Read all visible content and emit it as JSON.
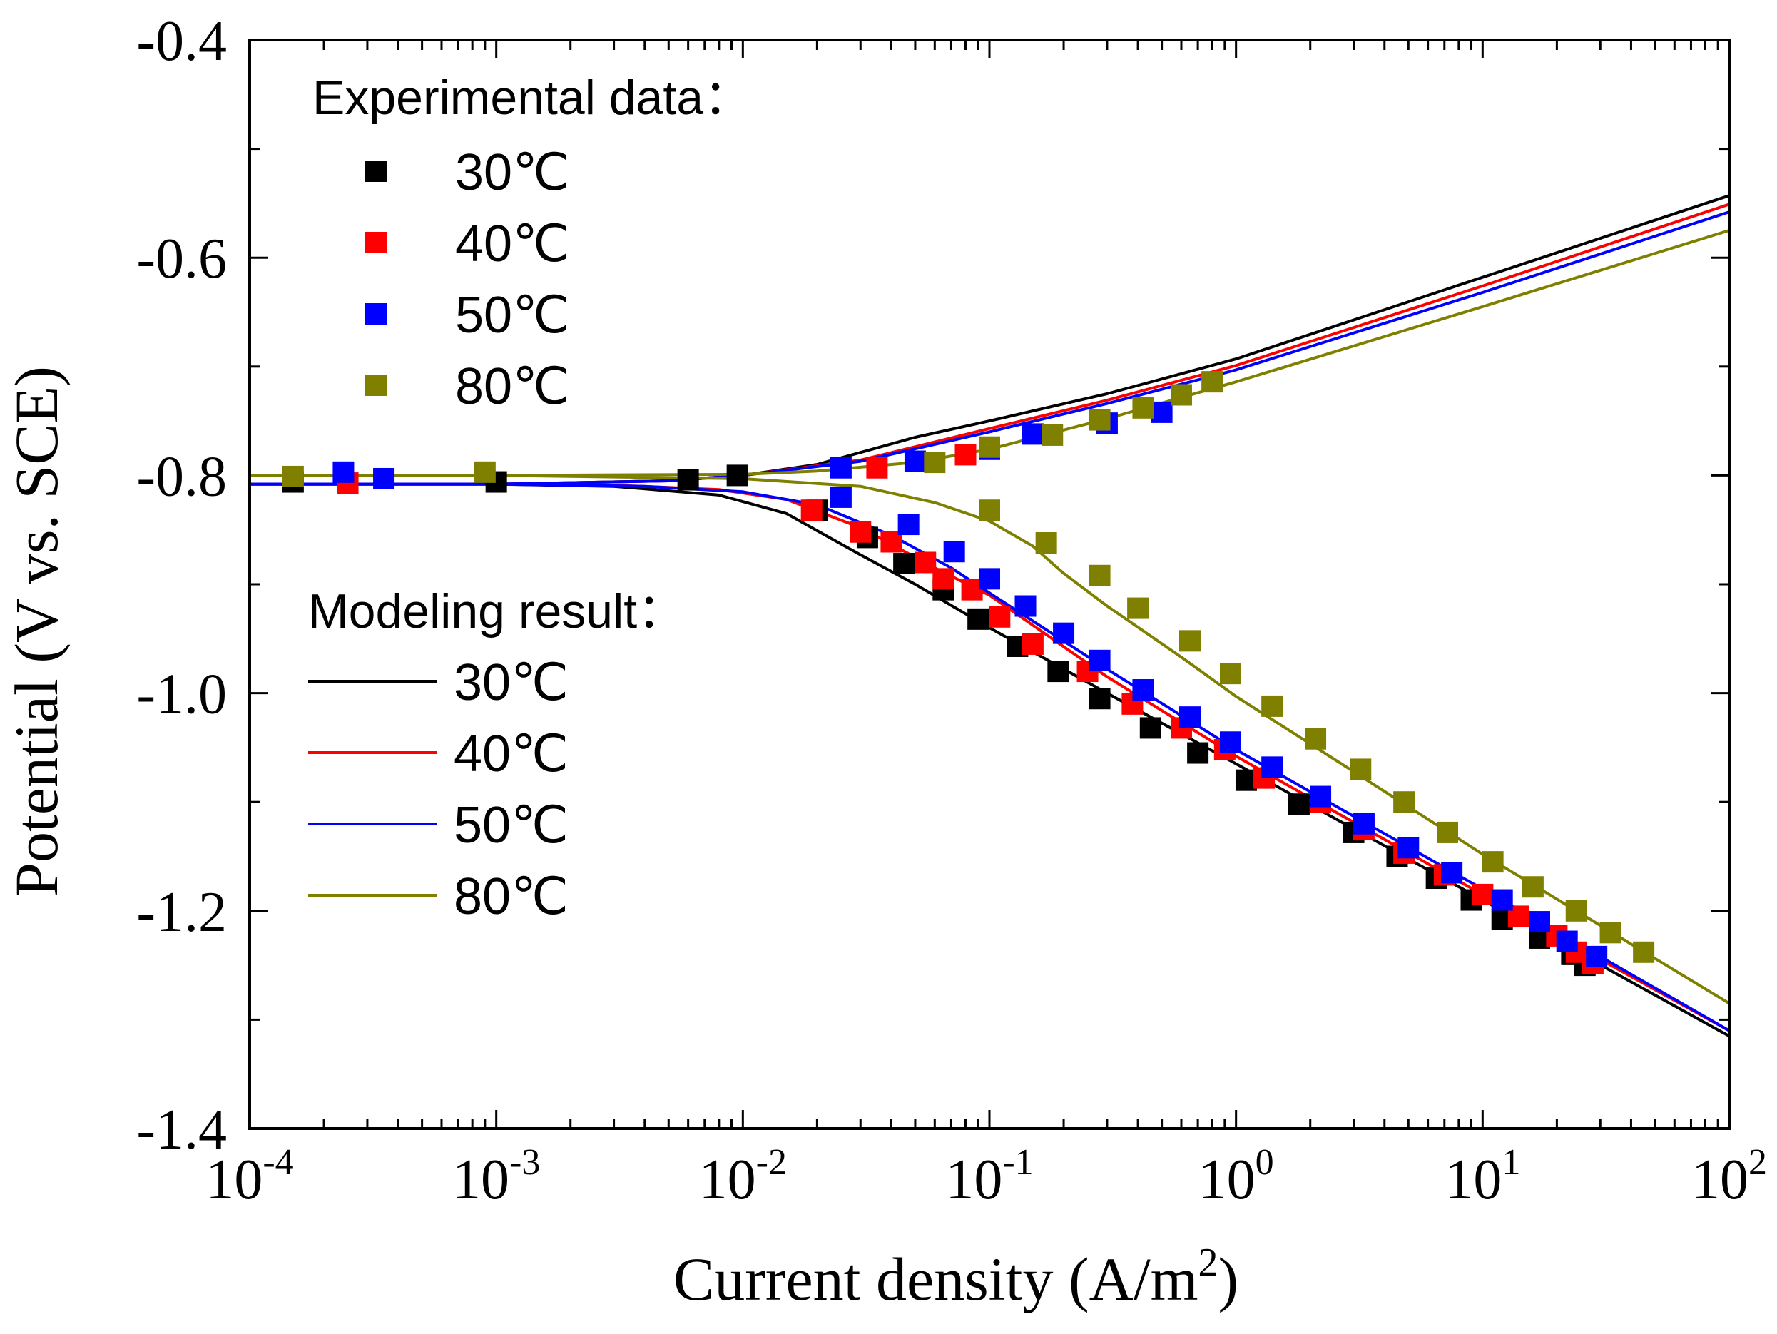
{
  "chart_data": {
    "type": "line",
    "xscale": "log",
    "xlabel": {
      "main": "Current density (A/m",
      "sup": "2",
      "close": ")"
    },
    "ylabel": "Potential (V vs. SCE)",
    "xlim": [
      0.0001,
      100
    ],
    "ylim": [
      -1.4,
      -0.4
    ],
    "x_ticks": [
      {
        "base": "10",
        "exp": "-4",
        "value": 0.0001
      },
      {
        "base": "10",
        "exp": "-3",
        "value": 0.001
      },
      {
        "base": "10",
        "exp": "-2",
        "value": 0.01
      },
      {
        "base": "10",
        "exp": "-1",
        "value": 0.1
      },
      {
        "base": "10",
        "exp": "0",
        "value": 1
      },
      {
        "base": "10",
        "exp": "1",
        "value": 10
      },
      {
        "base": "10",
        "exp": "2",
        "value": 100
      }
    ],
    "y_ticks": [
      {
        "label": "-0.4",
        "value": -0.4
      },
      {
        "label": "-0.6",
        "value": -0.6
      },
      {
        "label": "-0.8",
        "value": -0.8
      },
      {
        "label": "-1.0",
        "value": -1.0
      },
      {
        "label": "-1.2",
        "value": -1.2
      },
      {
        "label": "-1.4",
        "value": -1.4
      }
    ],
    "legend_experimental_title": "Experimental data：",
    "legend_model_title": "Modeling result：",
    "legend_placement": "top-left",
    "series": [
      {
        "name": "30℃",
        "color": "#000000",
        "ecorr": -0.808,
        "exp_anodic": [
          [
            0.00015,
            -0.806
          ],
          [
            0.001,
            -0.806
          ],
          [
            0.006,
            -0.804
          ],
          [
            0.0095,
            -0.8
          ]
        ],
        "exp_cathodic": [
          [
            0.02,
            -0.832
          ],
          [
            0.032,
            -0.857
          ],
          [
            0.045,
            -0.881
          ],
          [
            0.065,
            -0.905
          ],
          [
            0.09,
            -0.932
          ],
          [
            0.13,
            -0.957
          ],
          [
            0.19,
            -0.98
          ],
          [
            0.28,
            -1.005
          ],
          [
            0.45,
            -1.032
          ],
          [
            0.7,
            -1.055
          ],
          [
            1.1,
            -1.08
          ],
          [
            1.8,
            -1.102
          ],
          [
            3,
            -1.128
          ],
          [
            4.5,
            -1.15
          ],
          [
            6.5,
            -1.17
          ],
          [
            9,
            -1.19
          ],
          [
            12,
            -1.208
          ],
          [
            17,
            -1.225
          ],
          [
            23,
            -1.24
          ],
          [
            26,
            -1.25
          ]
        ],
        "model_anodic": [
          [
            0.0001,
            -0.808
          ],
          [
            0.001,
            -0.808
          ],
          [
            0.005,
            -0.805
          ],
          [
            0.01,
            -0.8
          ],
          [
            0.02,
            -0.79
          ],
          [
            0.05,
            -0.765
          ],
          [
            0.1,
            -0.75
          ],
          [
            0.3,
            -0.725
          ],
          [
            1,
            -0.693
          ],
          [
            10,
            -0.618
          ],
          [
            100,
            -0.543
          ]
        ],
        "model_cathodic": [
          [
            0.0001,
            -0.808
          ],
          [
            0.001,
            -0.808
          ],
          [
            0.003,
            -0.81
          ],
          [
            0.008,
            -0.818
          ],
          [
            0.015,
            -0.835
          ],
          [
            0.03,
            -0.873
          ],
          [
            0.05,
            -0.9
          ],
          [
            0.1,
            -0.94
          ],
          [
            0.3,
            -1.0
          ],
          [
            1,
            -1.065
          ],
          [
            10,
            -1.19
          ],
          [
            100,
            -1.315
          ]
        ]
      },
      {
        "name": "40℃",
        "color": "#ff0000",
        "ecorr": -0.808,
        "exp_anodic": [
          [
            0.00025,
            -0.807
          ],
          [
            0.035,
            -0.793
          ],
          [
            0.08,
            -0.781
          ]
        ],
        "exp_cathodic": [
          [
            0.019,
            -0.832
          ],
          [
            0.03,
            -0.852
          ],
          [
            0.04,
            -0.861
          ],
          [
            0.055,
            -0.88
          ],
          [
            0.065,
            -0.895
          ],
          [
            0.085,
            -0.905
          ],
          [
            0.11,
            -0.93
          ],
          [
            0.15,
            -0.955
          ],
          [
            0.25,
            -0.98
          ],
          [
            0.38,
            -1.01
          ],
          [
            0.6,
            -1.032
          ],
          [
            0.9,
            -1.052
          ],
          [
            1.3,
            -1.078
          ],
          [
            2.2,
            -1.1
          ],
          [
            3.3,
            -1.125
          ],
          [
            4.8,
            -1.147
          ],
          [
            7,
            -1.167
          ],
          [
            10,
            -1.185
          ],
          [
            14,
            -1.205
          ],
          [
            20,
            -1.223
          ],
          [
            24,
            -1.238
          ],
          [
            28,
            -1.248
          ]
        ],
        "model_anodic": [
          [
            0.0001,
            -0.808
          ],
          [
            0.001,
            -0.808
          ],
          [
            0.005,
            -0.805
          ],
          [
            0.01,
            -0.8
          ],
          [
            0.03,
            -0.786
          ],
          [
            0.1,
            -0.757
          ],
          [
            0.3,
            -0.731
          ],
          [
            1,
            -0.699
          ],
          [
            10,
            -0.626
          ],
          [
            100,
            -0.551
          ]
        ],
        "model_cathodic": [
          [
            0.0001,
            -0.808
          ],
          [
            0.001,
            -0.808
          ],
          [
            0.003,
            -0.809
          ],
          [
            0.008,
            -0.813
          ],
          [
            0.015,
            -0.822
          ],
          [
            0.03,
            -0.848
          ],
          [
            0.06,
            -0.885
          ],
          [
            0.1,
            -0.91
          ],
          [
            0.3,
            -0.985
          ],
          [
            1,
            -1.058
          ],
          [
            10,
            -1.185
          ],
          [
            100,
            -1.31
          ]
        ]
      },
      {
        "name": "50℃",
        "color": "#0000ff",
        "ecorr": -0.808,
        "exp_anodic": [
          [
            0.00024,
            -0.797
          ],
          [
            0.00035,
            -0.803
          ],
          [
            0.025,
            -0.793
          ],
          [
            0.05,
            -0.787
          ],
          [
            0.1,
            -0.776
          ],
          [
            0.15,
            -0.762
          ],
          [
            0.3,
            -0.752
          ],
          [
            0.5,
            -0.742
          ]
        ],
        "exp_cathodic": [
          [
            0.025,
            -0.82
          ],
          [
            0.047,
            -0.845
          ],
          [
            0.072,
            -0.87
          ],
          [
            0.1,
            -0.895
          ],
          [
            0.14,
            -0.92
          ],
          [
            0.2,
            -0.945
          ],
          [
            0.28,
            -0.97
          ],
          [
            0.42,
            -0.997
          ],
          [
            0.65,
            -1.022
          ],
          [
            0.95,
            -1.045
          ],
          [
            1.4,
            -1.068
          ],
          [
            2.2,
            -1.095
          ],
          [
            3.3,
            -1.12
          ],
          [
            5,
            -1.142
          ],
          [
            7.5,
            -1.165
          ],
          [
            12,
            -1.19
          ],
          [
            17,
            -1.21
          ],
          [
            22,
            -1.228
          ],
          [
            29,
            -1.242
          ]
        ],
        "model_anodic": [
          [
            0.0001,
            -0.808
          ],
          [
            0.001,
            -0.808
          ],
          [
            0.005,
            -0.805
          ],
          [
            0.01,
            -0.8
          ],
          [
            0.03,
            -0.787
          ],
          [
            0.1,
            -0.76
          ],
          [
            0.3,
            -0.734
          ],
          [
            1,
            -0.703
          ],
          [
            10,
            -0.632
          ],
          [
            100,
            -0.558
          ]
        ],
        "model_cathodic": [
          [
            0.0001,
            -0.808
          ],
          [
            0.001,
            -0.808
          ],
          [
            0.004,
            -0.81
          ],
          [
            0.01,
            -0.815
          ],
          [
            0.02,
            -0.827
          ],
          [
            0.04,
            -0.855
          ],
          [
            0.07,
            -0.885
          ],
          [
            0.1,
            -0.908
          ],
          [
            0.3,
            -0.978
          ],
          [
            1,
            -1.052
          ],
          [
            10,
            -1.18
          ],
          [
            100,
            -1.31
          ]
        ]
      },
      {
        "name": "80℃",
        "color": "#808000",
        "ecorr": -0.8,
        "exp_anodic": [
          [
            0.00015,
            -0.801
          ],
          [
            0.0009,
            -0.797
          ],
          [
            0.06,
            -0.788
          ],
          [
            0.1,
            -0.774
          ],
          [
            0.18,
            -0.763
          ],
          [
            0.28,
            -0.749
          ],
          [
            0.42,
            -0.738
          ],
          [
            0.6,
            -0.726
          ],
          [
            0.8,
            -0.714
          ]
        ],
        "exp_cathodic": [
          [
            0.1,
            -0.832
          ],
          [
            0.17,
            -0.862
          ],
          [
            0.28,
            -0.892
          ],
          [
            0.4,
            -0.922
          ],
          [
            0.65,
            -0.952
          ],
          [
            0.95,
            -0.982
          ],
          [
            1.4,
            -1.012
          ],
          [
            2.1,
            -1.042
          ],
          [
            3.2,
            -1.07
          ],
          [
            4.8,
            -1.1
          ],
          [
            7.2,
            -1.128
          ],
          [
            11,
            -1.155
          ],
          [
            16,
            -1.178
          ],
          [
            24,
            -1.2
          ],
          [
            33,
            -1.22
          ],
          [
            45,
            -1.238
          ]
        ],
        "model_anodic": [
          [
            0.0001,
            -0.8
          ],
          [
            0.001,
            -0.8
          ],
          [
            0.01,
            -0.799
          ],
          [
            0.02,
            -0.796
          ],
          [
            0.05,
            -0.788
          ],
          [
            0.1,
            -0.776
          ],
          [
            0.3,
            -0.748
          ],
          [
            1,
            -0.714
          ],
          [
            10,
            -0.645
          ],
          [
            100,
            -0.575
          ]
        ],
        "model_cathodic": [
          [
            0.0001,
            -0.8
          ],
          [
            0.001,
            -0.8
          ],
          [
            0.01,
            -0.803
          ],
          [
            0.03,
            -0.81
          ],
          [
            0.06,
            -0.825
          ],
          [
            0.1,
            -0.842
          ],
          [
            0.15,
            -0.865
          ],
          [
            0.2,
            -0.89
          ],
          [
            0.3,
            -0.92
          ],
          [
            0.6,
            -0.967
          ],
          [
            1,
            -1.003
          ],
          [
            10,
            -1.148
          ],
          [
            100,
            -1.285
          ]
        ]
      }
    ]
  }
}
